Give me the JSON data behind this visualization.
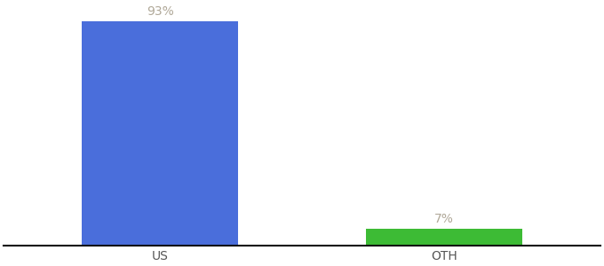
{
  "categories": [
    "US",
    "OTH"
  ],
  "values": [
    93,
    7
  ],
  "bar_colors": [
    "#4a6edb",
    "#3dbb35"
  ],
  "value_labels": [
    "93%",
    "7%"
  ],
  "ylim": [
    0,
    100
  ],
  "background_color": "#ffffff",
  "label_color": "#b0a898",
  "label_fontsize": 10,
  "tick_fontsize": 10,
  "tick_color": "#555555",
  "bar_width": 0.55,
  "x_positions": [
    0,
    1
  ],
  "xlim": [
    -0.55,
    1.55
  ],
  "bottom_spine_color": "#111111",
  "bottom_spine_linewidth": 1.5
}
